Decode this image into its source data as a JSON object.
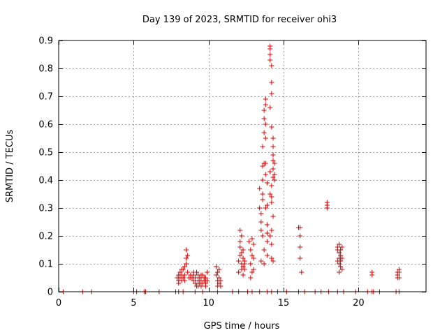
{
  "chart_data": {
    "type": "scatter",
    "title": "Day 139 of 2023, SRMTID for receiver ohi3",
    "xlabel": "GPS time / hours",
    "ylabel": "SRMTID / TECUs",
    "xlim": [
      0,
      24.5
    ],
    "ylim": [
      0,
      0.9
    ],
    "xticks": [
      0,
      5,
      10,
      15,
      20
    ],
    "yticks": [
      0,
      0.1,
      0.2,
      0.3,
      0.4,
      0.5,
      0.6,
      0.7,
      0.8,
      0.9
    ],
    "grid": true,
    "marker": "+",
    "color": "#e00000",
    "series": [
      {
        "name": "SRMTID",
        "points": [
          [
            0.3,
            0
          ],
          [
            1.6,
            0
          ],
          [
            2.2,
            0
          ],
          [
            5.0,
            0
          ],
          [
            5.2,
            0
          ],
          [
            5.7,
            0
          ],
          [
            5.8,
            0
          ],
          [
            6.7,
            0
          ],
          [
            7.8,
            0
          ],
          [
            8.0,
            0
          ],
          [
            8.3,
            0
          ],
          [
            9.1,
            0
          ],
          [
            9.6,
            0
          ],
          [
            10.6,
            0
          ],
          [
            11.6,
            0
          ],
          [
            12.0,
            0
          ],
          [
            12.6,
            0
          ],
          [
            12.9,
            0
          ],
          [
            13.4,
            0
          ],
          [
            13.9,
            0
          ],
          [
            14.2,
            0
          ],
          [
            14.6,
            0
          ],
          [
            15.2,
            0
          ],
          [
            16.0,
            0
          ],
          [
            16.4,
            0
          ],
          [
            17.1,
            0
          ],
          [
            17.5,
            0
          ],
          [
            18.0,
            0
          ],
          [
            18.6,
            0
          ],
          [
            19.0,
            0
          ],
          [
            19.8,
            0
          ],
          [
            20.6,
            0
          ],
          [
            20.9,
            0
          ],
          [
            21.0,
            0
          ],
          [
            21.4,
            0
          ],
          [
            22.5,
            0
          ],
          [
            22.7,
            0
          ],
          [
            7.9,
            0.05
          ],
          [
            8.0,
            0.04
          ],
          [
            8.0,
            0.06
          ],
          [
            8.1,
            0.05
          ],
          [
            8.1,
            0.07
          ],
          [
            8.2,
            0.06
          ],
          [
            8.2,
            0.04
          ],
          [
            8.3,
            0.05
          ],
          [
            8.3,
            0.08
          ],
          [
            8.4,
            0.09
          ],
          [
            8.4,
            0.06
          ],
          [
            8.5,
            0.12
          ],
          [
            8.5,
            0.15
          ],
          [
            8.5,
            0.1
          ],
          [
            8.6,
            0.13
          ],
          [
            8.6,
            0.07
          ],
          [
            8.7,
            0.05
          ],
          [
            8.8,
            0.06
          ],
          [
            8.9,
            0.05
          ],
          [
            9.0,
            0.04
          ],
          [
            9.0,
            0.06
          ],
          [
            9.1,
            0.03
          ],
          [
            9.1,
            0.05
          ],
          [
            9.2,
            0.07
          ],
          [
            9.2,
            0.02
          ],
          [
            9.3,
            0.04
          ],
          [
            9.3,
            0.06
          ],
          [
            9.4,
            0.03
          ],
          [
            9.4,
            0.05
          ],
          [
            9.5,
            0.04
          ],
          [
            9.5,
            0.02
          ],
          [
            9.6,
            0.06
          ],
          [
            9.6,
            0.03
          ],
          [
            9.7,
            0.05
          ],
          [
            9.7,
            0.04
          ],
          [
            9.8,
            0.03
          ],
          [
            9.8,
            0.05
          ],
          [
            9.9,
            0.07
          ],
          [
            9.9,
            0.04
          ],
          [
            8.0,
            0.03
          ],
          [
            8.2,
            0.08
          ],
          [
            8.4,
            0.04
          ],
          [
            8.8,
            0.05
          ],
          [
            9.0,
            0.07
          ],
          [
            9.3,
            0.02
          ],
          [
            9.5,
            0.06
          ],
          [
            9.8,
            0.02
          ],
          [
            10.5,
            0.09
          ],
          [
            10.5,
            0.06
          ],
          [
            10.6,
            0.04
          ],
          [
            10.6,
            0.07
          ],
          [
            10.7,
            0.03
          ],
          [
            10.7,
            0.05
          ],
          [
            10.8,
            0.02
          ],
          [
            10.8,
            0.04
          ],
          [
            10.6,
            0.02
          ],
          [
            10.7,
            0.08
          ],
          [
            12.0,
            0.07
          ],
          [
            12.0,
            0.11
          ],
          [
            12.1,
            0.18
          ],
          [
            12.1,
            0.22
          ],
          [
            12.1,
            0.13
          ],
          [
            12.2,
            0.1
          ],
          [
            12.2,
            0.14
          ],
          [
            12.2,
            0.08
          ],
          [
            12.3,
            0.09
          ],
          [
            12.3,
            0.12
          ],
          [
            12.3,
            0.15
          ],
          [
            12.4,
            0.1
          ],
          [
            12.4,
            0.08
          ],
          [
            12.4,
            0.11
          ],
          [
            12.2,
            0.2
          ],
          [
            12.3,
            0.06
          ],
          [
            12.1,
            0.16
          ],
          [
            12.7,
            0.18
          ],
          [
            12.8,
            0.15
          ],
          [
            12.8,
            0.1
          ],
          [
            12.9,
            0.19
          ],
          [
            12.9,
            0.13
          ],
          [
            13.0,
            0.17
          ],
          [
            13.0,
            0.12
          ],
          [
            13.0,
            0.08
          ],
          [
            12.8,
            0.05
          ],
          [
            12.9,
            0.07
          ],
          [
            13.4,
            0.37
          ],
          [
            13.4,
            0.3
          ],
          [
            13.5,
            0.25
          ],
          [
            13.5,
            0.28
          ],
          [
            13.5,
            0.22
          ],
          [
            13.6,
            0.4
          ],
          [
            13.6,
            0.35
          ],
          [
            13.6,
            0.45
          ],
          [
            13.6,
            0.33
          ],
          [
            13.7,
            0.46
          ],
          [
            13.7,
            0.57
          ],
          [
            13.7,
            0.62
          ],
          [
            13.7,
            0.65
          ],
          [
            13.8,
            0.69
          ],
          [
            13.8,
            0.67
          ],
          [
            13.8,
            0.6
          ],
          [
            13.8,
            0.55
          ],
          [
            13.8,
            0.46
          ],
          [
            13.8,
            0.42
          ],
          [
            13.9,
            0.39
          ],
          [
            13.9,
            0.31
          ],
          [
            13.9,
            0.24
          ],
          [
            13.9,
            0.21
          ],
          [
            13.9,
            0.18
          ],
          [
            13.6,
            0.2
          ],
          [
            13.7,
            0.15
          ],
          [
            13.9,
            0.13
          ],
          [
            13.5,
            0.11
          ],
          [
            13.7,
            0.1
          ],
          [
            13.6,
            0.52
          ],
          [
            13.8,
            0.3
          ],
          [
            14.1,
            0.88
          ],
          [
            14.1,
            0.87
          ],
          [
            14.1,
            0.85
          ],
          [
            14.1,
            0.83
          ],
          [
            14.2,
            0.81
          ],
          [
            14.2,
            0.75
          ],
          [
            14.2,
            0.71
          ],
          [
            14.1,
            0.66
          ],
          [
            14.2,
            0.59
          ],
          [
            14.3,
            0.55
          ],
          [
            14.3,
            0.52
          ],
          [
            14.3,
            0.49
          ],
          [
            14.3,
            0.47
          ],
          [
            14.3,
            0.44
          ],
          [
            14.3,
            0.41
          ],
          [
            14.2,
            0.38
          ],
          [
            14.1,
            0.35
          ],
          [
            14.2,
            0.32
          ],
          [
            14.2,
            0.34
          ],
          [
            14.3,
            0.27
          ],
          [
            14.2,
            0.22
          ],
          [
            14.1,
            0.2
          ],
          [
            14.2,
            0.17
          ],
          [
            14.2,
            0.12
          ],
          [
            14.3,
            0.11
          ],
          [
            14.4,
            0.42
          ],
          [
            14.4,
            0.4
          ],
          [
            14.4,
            0.46
          ],
          [
            14.1,
            0.43
          ],
          [
            16.0,
            0.23
          ],
          [
            16.1,
            0.23
          ],
          [
            16.1,
            0.2
          ],
          [
            16.1,
            0.16
          ],
          [
            16.1,
            0.12
          ],
          [
            16.2,
            0.07
          ],
          [
            17.9,
            0.31
          ],
          [
            17.9,
            0.3
          ],
          [
            17.9,
            0.32
          ],
          [
            18.6,
            0.16
          ],
          [
            18.6,
            0.15
          ],
          [
            18.7,
            0.17
          ],
          [
            18.7,
            0.14
          ],
          [
            18.7,
            0.12
          ],
          [
            18.7,
            0.1
          ],
          [
            18.8,
            0.13
          ],
          [
            18.8,
            0.11
          ],
          [
            18.8,
            0.09
          ],
          [
            18.8,
            0.15
          ],
          [
            18.9,
            0.16
          ],
          [
            18.9,
            0.12
          ],
          [
            18.9,
            0.08
          ],
          [
            18.6,
            0.11
          ],
          [
            18.7,
            0.07
          ],
          [
            20.9,
            0.07
          ],
          [
            20.9,
            0.06
          ],
          [
            22.6,
            0.05
          ],
          [
            22.6,
            0.06
          ],
          [
            22.7,
            0.07
          ],
          [
            22.7,
            0.08
          ],
          [
            22.7,
            0.05
          ],
          [
            22.6,
            0.07
          ]
        ]
      }
    ]
  }
}
